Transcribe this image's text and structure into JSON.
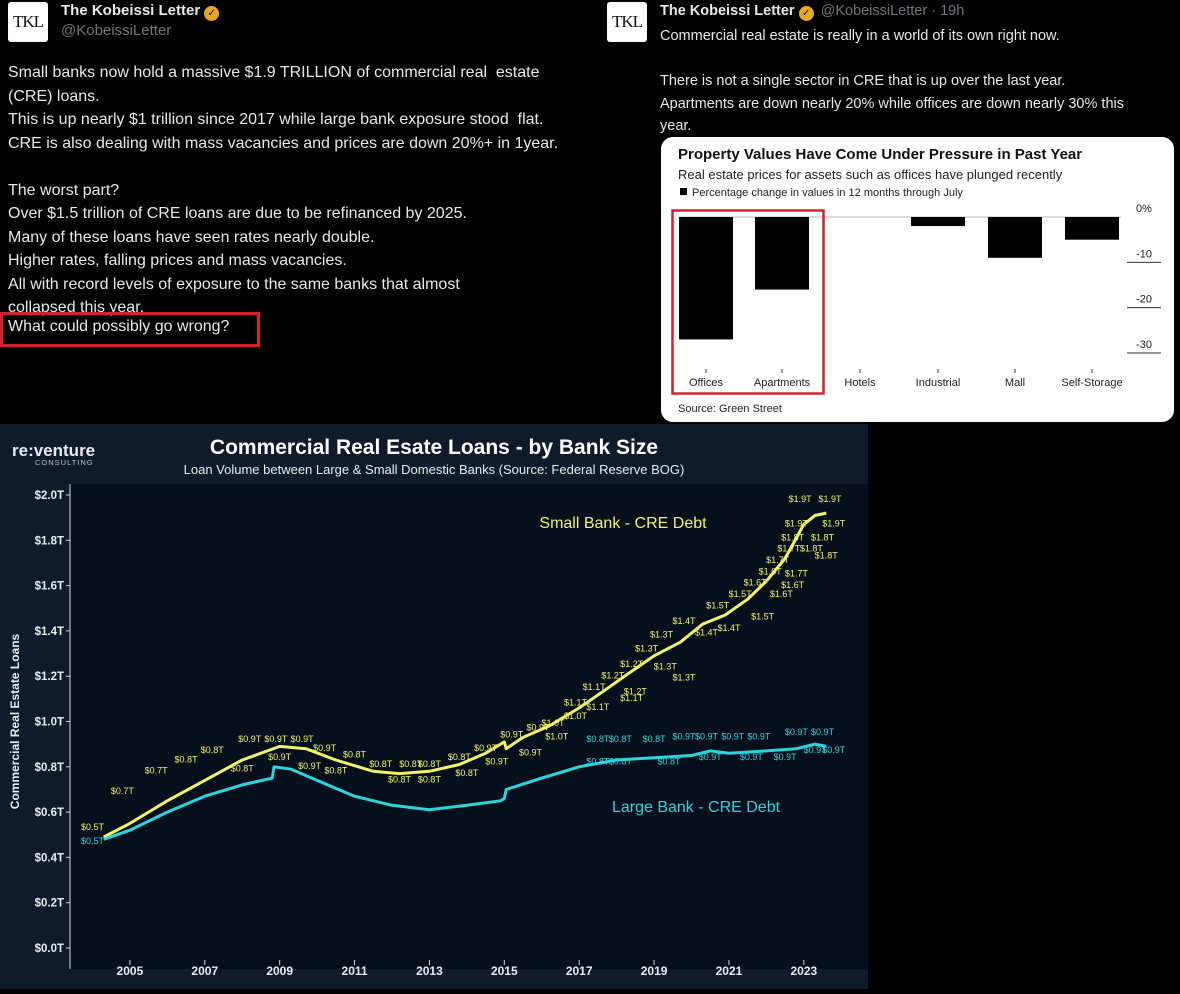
{
  "tweet_left": {
    "avatar_text": "TKL",
    "author": "The Kobeissi Letter",
    "handle": "@KobeissiLetter",
    "lines": [
      "Small banks now hold a massive $1.9 TRILLION of commercial real  estate",
      "(CRE) loans.",
      "This is up nearly $1 trillion since 2017 while large bank exposure stood  flat.",
      "CRE is also dealing with mass vacancies and prices are down 20%+ in 1year.",
      "",
      "The worst part?",
      "Over $1.5 trillion of CRE loans are due to be refinanced by 2025.",
      "Many of these loans have seen rates nearly double.",
      "Higher rates, falling prices and mass vacancies.",
      "All with record levels of exposure to the same banks that almost",
      "collapsed this year."
    ],
    "highlight": "What could possibly go wrong?"
  },
  "tweet_right": {
    "avatar_text": "TKL",
    "author": "The Kobeissi Letter",
    "handle": "@KobeissiLetter",
    "time": "· 19h",
    "lines": [
      "Commercial real estate is really in a world of its own right now.",
      "",
      "There is not a single sector in CRE that is up over the last year.",
      "Apartments are down nearly 20% while offices are down nearly 30% this",
      "year."
    ]
  },
  "colors": {
    "accent_red": "#d3222a",
    "small_bank": "#f2f26a",
    "large_bank": "#2fd3dc",
    "chart_bg": "#0f1b2a",
    "verified": "#e6a821"
  },
  "chart_data": [
    {
      "type": "bar",
      "title": "Property Values Have Come Under Pressure in Past Year",
      "subtitle": "Real estate prices for assets such as offices have plunged recently",
      "legend": "Percentage change in values in 12 months through July",
      "source": "Source: Green Street",
      "categories": [
        "Offices",
        "Apartments",
        "Hotels",
        "Industrial",
        "Mall",
        "Self-Storage"
      ],
      "values": [
        -27,
        -16,
        0,
        -2,
        -9,
        -5
      ],
      "ylim": [
        -30,
        0
      ],
      "yticks": [
        "0%",
        "-10",
        "-20",
        "-30"
      ],
      "highlighted": [
        "Offices",
        "Apartments"
      ]
    },
    {
      "type": "line",
      "brand": "re:venture",
      "brand_sub": "CONSULTING",
      "title": "Commercial Real Esate Loans - by Bank Size",
      "subtitle": "Loan Volume between Large & Small Domestic Banks (Source: Federal Reserve BOG)",
      "ylabel": "Commercial Real Estate Loans",
      "yticks": [
        "$2.0T",
        "$1.8T",
        "$1.6T",
        "$1.4T",
        "$1.2T",
        "$1.0T",
        "$0.8T",
        "$0.6T",
        "$0.4T",
        "$0.2T",
        "$0.0T"
      ],
      "xticks": [
        "2005",
        "2007",
        "2009",
        "2011",
        "2013",
        "2015",
        "2017",
        "2019",
        "2021",
        "2023"
      ],
      "ylim": [
        0,
        2.0
      ],
      "xlim": [
        2003.4,
        2024.5
      ],
      "series": [
        {
          "name": "Small Bank - CRE Debt",
          "points": [
            [
              2004.3,
              0.49
            ],
            [
              2005,
              0.55
            ],
            [
              2006,
              0.65
            ],
            [
              2007,
              0.74
            ],
            [
              2008,
              0.83
            ],
            [
              2009,
              0.89
            ],
            [
              2009.7,
              0.88
            ],
            [
              2010.5,
              0.83
            ],
            [
              2011.5,
              0.78
            ],
            [
              2012.2,
              0.77
            ],
            [
              2013,
              0.78
            ],
            [
              2013.8,
              0.81
            ],
            [
              2014.5,
              0.86
            ],
            [
              2015.0,
              0.91
            ],
            [
              2015.05,
              0.88
            ],
            [
              2015.5,
              0.93
            ],
            [
              2016.2,
              0.98
            ],
            [
              2017,
              1.06
            ],
            [
              2017.7,
              1.14
            ],
            [
              2018.3,
              1.21
            ],
            [
              2019,
              1.29
            ],
            [
              2019.7,
              1.35
            ],
            [
              2020.3,
              1.43
            ],
            [
              2020.9,
              1.47
            ],
            [
              2021.5,
              1.54
            ],
            [
              2022,
              1.62
            ],
            [
              2022.5,
              1.72
            ],
            [
              2022.8,
              1.81
            ],
            [
              2023.0,
              1.87
            ],
            [
              2023.3,
              1.91
            ],
            [
              2023.6,
              1.92
            ]
          ]
        },
        {
          "name": "Large Bank - CRE Debt",
          "points": [
            [
              2004.3,
              0.48
            ],
            [
              2005,
              0.52
            ],
            [
              2006,
              0.6
            ],
            [
              2007,
              0.67
            ],
            [
              2008,
              0.72
            ],
            [
              2008.8,
              0.75
            ],
            [
              2008.85,
              0.8
            ],
            [
              2009.3,
              0.79
            ],
            [
              2010,
              0.74
            ],
            [
              2011,
              0.67
            ],
            [
              2012,
              0.63
            ],
            [
              2013,
              0.61
            ],
            [
              2014,
              0.63
            ],
            [
              2014.9,
              0.65
            ],
            [
              2015.0,
              0.66
            ],
            [
              2015.05,
              0.7
            ],
            [
              2016,
              0.75
            ],
            [
              2017,
              0.8
            ],
            [
              2018,
              0.83
            ],
            [
              2019,
              0.84
            ],
            [
              2020,
              0.85
            ],
            [
              2020.5,
              0.87
            ],
            [
              2021,
              0.86
            ],
            [
              2022,
              0.87
            ],
            [
              2022.8,
              0.88
            ],
            [
              2023.3,
              0.9
            ],
            [
              2023.6,
              0.89
            ]
          ]
        }
      ],
      "labels": [
        [
          "$0.5T",
          2004.0,
          0.52,
          "s"
        ],
        [
          "$0.5T",
          2004.0,
          0.46,
          "l"
        ],
        [
          "$0.7T",
          2004.8,
          0.68,
          "s"
        ],
        [
          "$0.7T",
          2005.7,
          0.77,
          "s"
        ],
        [
          "$0.8T",
          2006.5,
          0.82,
          "s"
        ],
        [
          "$0.8T",
          2007.2,
          0.86,
          "s"
        ],
        [
          "$0.8T",
          2008.0,
          0.78,
          "s"
        ],
        [
          "$0.9T",
          2008.2,
          0.91,
          "s"
        ],
        [
          "$0.9T",
          2008.9,
          0.91,
          "s"
        ],
        [
          "$0.9T",
          2009.6,
          0.91,
          "s"
        ],
        [
          "$0.9T",
          2009.0,
          0.83,
          "s"
        ],
        [
          "$0.9T",
          2010.2,
          0.87,
          "s"
        ],
        [
          "$0.9T",
          2009.8,
          0.79,
          "s"
        ],
        [
          "$0.8T",
          2010.5,
          0.77,
          "s"
        ],
        [
          "$0.8T",
          2011.0,
          0.84,
          "s"
        ],
        [
          "$0.8T",
          2011.7,
          0.8,
          "s"
        ],
        [
          "$0.8T",
          2012.5,
          0.8,
          "s"
        ],
        [
          "$0.8T",
          2013.0,
          0.8,
          "s"
        ],
        [
          "$0.8T",
          2012.2,
          0.73,
          "s"
        ],
        [
          "$0.8T",
          2013.0,
          0.73,
          "s"
        ],
        [
          "$0.8T",
          2013.8,
          0.83,
          "s"
        ],
        [
          "$0.8T",
          2014.0,
          0.76,
          "s"
        ],
        [
          "$0.9T",
          2014.5,
          0.87,
          "s"
        ],
        [
          "$0.9T",
          2015.2,
          0.93,
          "s"
        ],
        [
          "$0.9T",
          2015.9,
          0.96,
          "s"
        ],
        [
          "$0.9T",
          2014.8,
          0.81,
          "s"
        ],
        [
          "$0.9T",
          2015.7,
          0.85,
          "s"
        ],
        [
          "$1.0T",
          2016.3,
          0.98,
          "s"
        ],
        [
          "$1.0T",
          2016.9,
          1.01,
          "s"
        ],
        [
          "$1.0T",
          2016.4,
          0.92,
          "s"
        ],
        [
          "$1.1T",
          2016.9,
          1.07,
          "s"
        ],
        [
          "$1.1T",
          2017.4,
          1.14,
          "s"
        ],
        [
          "$1.1T",
          2017.5,
          1.05,
          "s"
        ],
        [
          "$1.2T",
          2017.9,
          1.19,
          "s"
        ],
        [
          "$1.2T",
          2018.4,
          1.24,
          "s"
        ],
        [
          "$1.2T",
          2018.5,
          1.12,
          "s"
        ],
        [
          "$1.1T",
          2018.4,
          1.09,
          "s"
        ],
        [
          "$1.3T",
          2018.8,
          1.31,
          "s"
        ],
        [
          "$1.3T",
          2019.2,
          1.37,
          "s"
        ],
        [
          "$1.3T",
          2019.3,
          1.23,
          "s"
        ],
        [
          "$1.3T",
          2019.8,
          1.18,
          "s"
        ],
        [
          "$1.4T",
          2019.8,
          1.43,
          "s"
        ],
        [
          "$1.4T",
          2020.4,
          1.38,
          "s"
        ],
        [
          "$1.4T",
          2021.0,
          1.4,
          "s"
        ],
        [
          "$1.5T",
          2020.7,
          1.5,
          "s"
        ],
        [
          "$1.5T",
          2021.3,
          1.55,
          "s"
        ],
        [
          "$1.5T",
          2021.9,
          1.45,
          "s"
        ],
        [
          "$1.6T",
          2021.7,
          1.6,
          "s"
        ],
        [
          "$1.6T",
          2022.1,
          1.65,
          "s"
        ],
        [
          "$1.6T",
          2022.4,
          1.55,
          "s"
        ],
        [
          "$1.6T",
          2022.7,
          1.59,
          "s"
        ],
        [
          "$1.7T",
          2022.3,
          1.7,
          "s"
        ],
        [
          "$1.7T",
          2022.6,
          1.75,
          "s"
        ],
        [
          "$1.7T",
          2022.8,
          1.64,
          "s"
        ],
        [
          "$1.8T",
          2022.7,
          1.8,
          "s"
        ],
        [
          "$1.8T",
          2023.2,
          1.75,
          "s"
        ],
        [
          "$1.8T",
          2023.5,
          1.8,
          "s"
        ],
        [
          "$1.8T",
          2023.6,
          1.72,
          "s"
        ],
        [
          "$1.9T",
          2022.8,
          1.86,
          "s"
        ],
        [
          "$1.9T",
          2022.9,
          1.97,
          "s"
        ],
        [
          "$1.9T",
          2023.7,
          1.97,
          "s"
        ],
        [
          "$1.9T",
          2023.8,
          1.86,
          "s"
        ],
        [
          "$0.8T",
          2017.5,
          0.91,
          "l"
        ],
        [
          "$0.8T",
          2018.1,
          0.91,
          "l"
        ],
        [
          "$0.8T",
          2019.0,
          0.91,
          "l"
        ],
        [
          "$0.9T",
          2019.8,
          0.92,
          "l"
        ],
        [
          "$0.9T",
          2020.4,
          0.92,
          "l"
        ],
        [
          "$0.9T",
          2021.1,
          0.92,
          "l"
        ],
        [
          "$0.9T",
          2021.8,
          0.92,
          "l"
        ],
        [
          "$0.9T",
          2022.8,
          0.94,
          "l"
        ],
        [
          "$0.9T",
          2023.5,
          0.94,
          "l"
        ],
        [
          "$0.8T",
          2017.5,
          0.81,
          "l"
        ],
        [
          "$0.8T",
          2018.1,
          0.81,
          "l"
        ],
        [
          "$0.8T",
          2019.4,
          0.81,
          "l"
        ],
        [
          "$0.9T",
          2020.5,
          0.83,
          "l"
        ],
        [
          "$0.9T",
          2021.6,
          0.83,
          "l"
        ],
        [
          "$0.9T",
          2022.5,
          0.83,
          "l"
        ],
        [
          "$0.9T",
          2023.3,
          0.86,
          "l"
        ],
        [
          "$0.9T",
          2023.8,
          0.86,
          "l"
        ]
      ]
    }
  ]
}
